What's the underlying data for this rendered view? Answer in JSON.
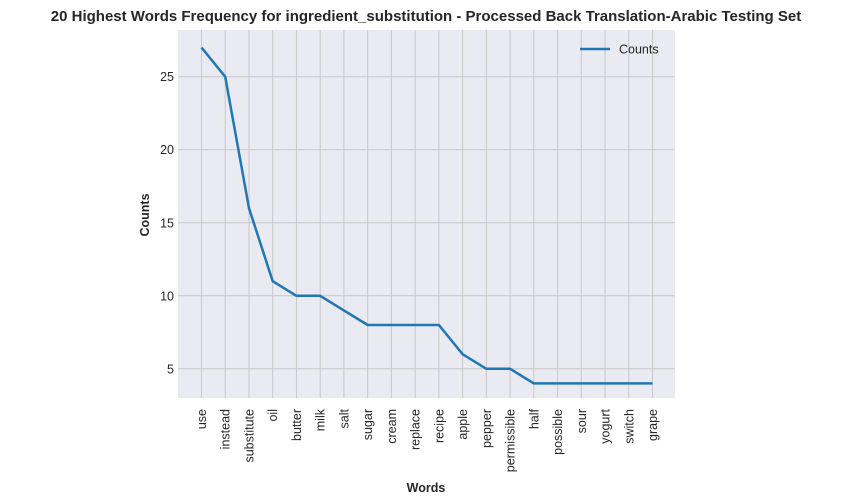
{
  "chart_data": {
    "type": "line",
    "title": "20 Highest Words Frequency for ingredient_substitution - Processed Back Translation-Arabic Testing Set",
    "xlabel": "Words",
    "ylabel": "Counts",
    "categories": [
      "use",
      "instead",
      "substitute",
      "oil",
      "butter",
      "milk",
      "salt",
      "sugar",
      "cream",
      "replace",
      "recipe",
      "apple",
      "pepper",
      "permissible",
      "half",
      "possible",
      "sour",
      "yogurt",
      "switch",
      "grape"
    ],
    "series": [
      {
        "name": "Counts",
        "values": [
          27,
          25,
          16,
          11,
          10,
          10,
          9,
          8,
          8,
          8,
          8,
          6,
          5,
          5,
          4,
          4,
          4,
          4,
          4,
          4
        ]
      }
    ],
    "ylim": [
      3,
      28.2
    ],
    "yticks": [
      5,
      10,
      15,
      20,
      25
    ],
    "grid": true,
    "legend_position": "top-right",
    "colors": {
      "line": "#1f77b4",
      "plot_bg": "#eaeaf2",
      "grid": "#c8c8c8"
    }
  }
}
